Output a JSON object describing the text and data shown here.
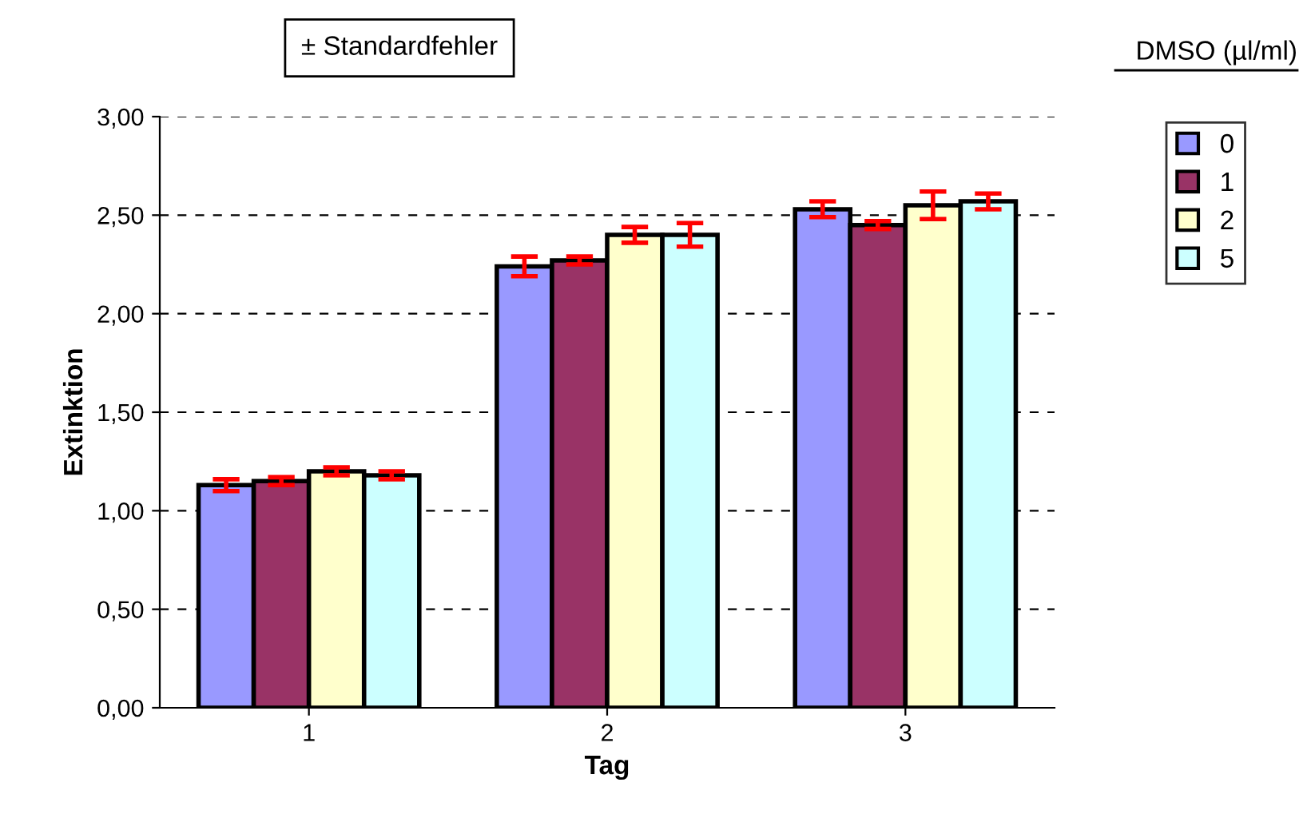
{
  "chart_data": {
    "type": "bar",
    "xlabel": "Tag",
    "ylabel": "Extinktion",
    "legend_title": "DMSO (µl/ml)",
    "annotations": [
      "± Standardfehler"
    ],
    "categories": [
      "1",
      "2",
      "3"
    ],
    "series": [
      {
        "name": "0",
        "color": "#9999ff",
        "values": [
          1.13,
          2.24,
          2.53
        ],
        "errors": [
          0.03,
          0.05,
          0.04
        ]
      },
      {
        "name": "1",
        "color": "#993366",
        "values": [
          1.15,
          2.27,
          2.45
        ],
        "errors": [
          0.02,
          0.02,
          0.02
        ]
      },
      {
        "name": "2",
        "color": "#ffffcc",
        "values": [
          1.2,
          2.4,
          2.55
        ],
        "errors": [
          0.02,
          0.04,
          0.07
        ]
      },
      {
        "name": "5",
        "color": "#ccffff",
        "values": [
          1.18,
          2.4,
          2.57
        ],
        "errors": [
          0.02,
          0.06,
          0.04
        ]
      }
    ],
    "ylim": [
      0,
      3
    ],
    "yticks": [
      {
        "value": 0,
        "label": "0,00"
      },
      {
        "value": 0.5,
        "label": "0,50"
      },
      {
        "value": 1,
        "label": "1,00"
      },
      {
        "value": 1.5,
        "label": "1,50"
      },
      {
        "value": 2,
        "label": "2,00"
      },
      {
        "value": 2.5,
        "label": "2,50"
      },
      {
        "value": 3,
        "label": "3,00"
      }
    ],
    "grid": "y",
    "legend": "right"
  }
}
